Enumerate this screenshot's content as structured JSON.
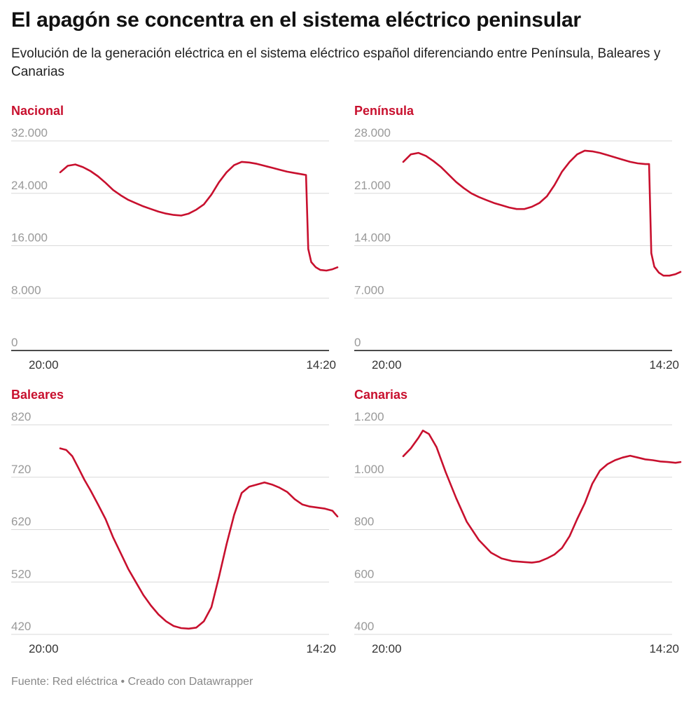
{
  "title": "El apagón se concentra en el sistema eléctrico peninsular",
  "subtitle": "Evolución de la generación eléctrica en el sistema eléctrico español diferenciando entre Península, Baleares y Canarias",
  "source": "Fuente: Red eléctrica • Creado con Datawrapper",
  "colors": {
    "line": "#c8102e",
    "label": "#c8102e",
    "grid": "#d9d9d9",
    "tick": "#999999",
    "baseline": "#111111"
  },
  "chart_data": [
    {
      "type": "line",
      "panel_title": "Nacional",
      "ylim": [
        0,
        32000
      ],
      "yticks": [
        0,
        8000,
        16000,
        24000,
        32000
      ],
      "ytick_labels": [
        "0",
        "8.000",
        "16.000",
        "24.000",
        "32.000"
      ],
      "xlim": [
        0,
        18.33
      ],
      "xtick_labels": [
        "20:00",
        "14:20"
      ],
      "baseline_at_zero": true,
      "series": [
        {
          "x": [
            0,
            0.5,
            1,
            1.5,
            2,
            2.5,
            3,
            3.5,
            4,
            4.5,
            5,
            5.5,
            6,
            6.5,
            7,
            7.5,
            8,
            8.5,
            9,
            9.5,
            10,
            10.5,
            11,
            11.5,
            12,
            12.5,
            13,
            13.5,
            14,
            14.5,
            15,
            15.5,
            16,
            16.25,
            16.4,
            16.6,
            16.9,
            17.2,
            17.6,
            18.0,
            18.33
          ],
          "y": [
            27200,
            28200,
            28400,
            28000,
            27400,
            26600,
            25600,
            24500,
            23700,
            23000,
            22500,
            22000,
            21600,
            21200,
            20900,
            20700,
            20600,
            20900,
            21500,
            22300,
            23800,
            25700,
            27200,
            28300,
            28800,
            28700,
            28500,
            28200,
            27900,
            27600,
            27300,
            27100,
            26900,
            26800,
            15500,
            13500,
            12700,
            12300,
            12200,
            12400,
            12700
          ]
        }
      ]
    },
    {
      "type": "line",
      "panel_title": "Península",
      "ylim": [
        0,
        28000
      ],
      "yticks": [
        0,
        7000,
        14000,
        21000,
        28000
      ],
      "ytick_labels": [
        "0",
        "7.000",
        "14.000",
        "21.000",
        "28.000"
      ],
      "xlim": [
        0,
        18.33
      ],
      "xtick_labels": [
        "20:00",
        "14:20"
      ],
      "baseline_at_zero": true,
      "series": [
        {
          "x": [
            0,
            0.5,
            1,
            1.5,
            2,
            2.5,
            3,
            3.5,
            4,
            4.5,
            5,
            5.5,
            6,
            6.5,
            7,
            7.5,
            8,
            8.5,
            9,
            9.5,
            10,
            10.5,
            11,
            11.5,
            12,
            12.5,
            13,
            13.5,
            14,
            14.5,
            15,
            15.5,
            16,
            16.25,
            16.4,
            16.6,
            16.9,
            17.2,
            17.6,
            18.0,
            18.33
          ],
          "y": [
            25200,
            26200,
            26400,
            26000,
            25300,
            24500,
            23500,
            22500,
            21700,
            21000,
            20500,
            20100,
            19700,
            19400,
            19100,
            18900,
            18900,
            19200,
            19700,
            20600,
            22100,
            23900,
            25200,
            26200,
            26700,
            26600,
            26400,
            26100,
            25800,
            25500,
            25200,
            25000,
            24900,
            24900,
            13000,
            11200,
            10400,
            10000,
            10000,
            10200,
            10500
          ]
        }
      ]
    },
    {
      "type": "line",
      "panel_title": "Baleares",
      "ylim": [
        400,
        820
      ],
      "yticks": [
        420,
        520,
        620,
        720,
        820
      ],
      "ytick_labels": [
        "420",
        "520",
        "620",
        "720",
        "820"
      ],
      "xlim": [
        0,
        18.33
      ],
      "xtick_labels": [
        "20:00",
        "14:20"
      ],
      "baseline_at_zero": false,
      "series": [
        {
          "x": [
            0,
            0.4,
            0.8,
            1.2,
            1.6,
            2,
            2.5,
            3,
            3.5,
            4,
            4.5,
            5,
            5.5,
            6,
            6.5,
            7,
            7.5,
            8,
            8.5,
            9,
            9.5,
            10,
            10.5,
            11,
            11.5,
            12,
            12.5,
            13,
            13.5,
            14,
            14.5,
            15,
            15.5,
            16,
            16.5,
            17,
            17.5,
            18,
            18.33
          ],
          "y": [
            775,
            772,
            760,
            738,
            715,
            695,
            668,
            640,
            605,
            575,
            545,
            520,
            495,
            475,
            458,
            445,
            436,
            432,
            431,
            433,
            445,
            472,
            530,
            592,
            648,
            690,
            702,
            706,
            710,
            706,
            700,
            692,
            678,
            668,
            664,
            662,
            660,
            656,
            645
          ]
        }
      ]
    },
    {
      "type": "line",
      "panel_title": "Canarias",
      "ylim": [
        400,
        1200
      ],
      "yticks": [
        400,
        600,
        800,
        1000,
        1200
      ],
      "ytick_labels": [
        "400",
        "600",
        "800",
        "1.000",
        "1.200"
      ],
      "xlim": [
        0,
        18.33
      ],
      "xtick_labels": [
        "20:00",
        "14:20"
      ],
      "baseline_at_zero": false,
      "series": [
        {
          "x": [
            0,
            0.5,
            1,
            1.3,
            1.7,
            2.2,
            2.8,
            3.5,
            4.2,
            5,
            5.8,
            6.5,
            7.2,
            8,
            8.5,
            9,
            9.5,
            10,
            10.5,
            11,
            11.5,
            12,
            12.5,
            13,
            13.5,
            14,
            14.5,
            15,
            15.5,
            16,
            16.5,
            17,
            17.5,
            18,
            18.33
          ],
          "y": [
            1080,
            1110,
            1150,
            1178,
            1165,
            1115,
            1020,
            920,
            830,
            760,
            712,
            690,
            680,
            676,
            674,
            678,
            690,
            705,
            730,
            775,
            840,
            900,
            975,
            1025,
            1050,
            1065,
            1075,
            1082,
            1075,
            1068,
            1065,
            1060,
            1058,
            1055,
            1058
          ]
        }
      ]
    }
  ]
}
